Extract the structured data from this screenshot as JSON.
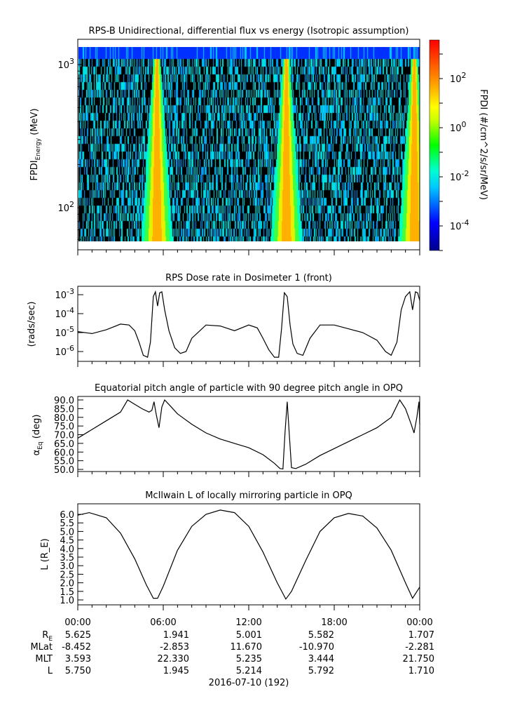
{
  "chart_data": [
    {
      "type": "heatmap",
      "title": "RPS-B  Unidirectional, differential flux vs energy (Isotropic assumption)",
      "ylabel": "FPDI_Energy (MeV)",
      "yscale": "log",
      "ylim": [
        58,
        1325
      ],
      "yticks": [
        {
          "v": 100,
          "label": "10",
          "exp": "2"
        },
        {
          "v": 1000,
          "label": "10",
          "exp": "3"
        }
      ],
      "colorbar": {
        "label": "FPDI (#/cm^2/s/sr/MeV)",
        "range_log10": [
          -5,
          3.57
        ],
        "ticks": [
          {
            "v": 2,
            "label": "10",
            "exp": "2"
          },
          {
            "v": 0,
            "label": "10",
            "exp": "0"
          },
          {
            "v": -2,
            "label": "10",
            "exp": "-2"
          },
          {
            "v": -4,
            "label": "10",
            "exp": "-4"
          }
        ]
      },
      "bright_band_center_hours": [
        5.5,
        14.6,
        23.6
      ],
      "xlim_hours": [
        0,
        24
      ]
    },
    {
      "type": "line",
      "title": "RPS  Dose rate in Dosimeter 1 (front)",
      "ylabel": "(rads/sec)",
      "yscale": "log",
      "ylim_log10": [
        -6.55,
        -2.6
      ],
      "yticks": [
        {
          "v": -3,
          "label": "10",
          "exp": "-3"
        },
        {
          "v": -4,
          "label": "10",
          "exp": "-4"
        },
        {
          "v": -5,
          "label": "10",
          "exp": "-5"
        },
        {
          "v": -6,
          "label": "10",
          "exp": "-6"
        }
      ],
      "x_hours": [
        0,
        1,
        2,
        3,
        3.6,
        4.0,
        4.3,
        4.6,
        4.9,
        5.1,
        5.3,
        5.45,
        5.6,
        5.75,
        5.9,
        6.1,
        6.4,
        6.8,
        7.2,
        7.6,
        8,
        9,
        10,
        11,
        12,
        12.6,
        13,
        13.4,
        13.8,
        14.1,
        14.3,
        14.5,
        14.7,
        14.9,
        15.1,
        15.4,
        15.8,
        16.3,
        17,
        18,
        19,
        20,
        21,
        21.6,
        22,
        22.4,
        22.7,
        23,
        23.3,
        23.5,
        23.7,
        23.85,
        24
      ],
      "y_log10": [
        -4.95,
        -5.05,
        -4.85,
        -4.55,
        -4.6,
        -4.9,
        -5.5,
        -6.2,
        -6.3,
        -5.5,
        -3.1,
        -2.85,
        -3.6,
        -2.9,
        -2.85,
        -3.8,
        -4.9,
        -5.8,
        -6.1,
        -6.0,
        -5.3,
        -4.6,
        -4.65,
        -4.9,
        -4.6,
        -4.75,
        -5.3,
        -5.9,
        -6.3,
        -6.3,
        -4.8,
        -2.9,
        -3.1,
        -4.6,
        -5.6,
        -6.1,
        -6.2,
        -5.3,
        -4.6,
        -4.6,
        -4.8,
        -5.0,
        -5.4,
        -6.0,
        -6.2,
        -5.5,
        -3.8,
        -3.1,
        -2.85,
        -3.8,
        -2.85,
        -2.9,
        -3.3
      ]
    },
    {
      "type": "line",
      "title": "Equatorial pitch angle of particle with 90 degree pitch angle in OPQ",
      "ylabel": "α_Eq (deg)",
      "ylim": [
        48.5,
        92
      ],
      "yticks": [
        90,
        85,
        80,
        75,
        70,
        65,
        60,
        55,
        50
      ],
      "x_hours": [
        0,
        1,
        2,
        3,
        3.5,
        4,
        4.5,
        5,
        5.2,
        5.35,
        5.5,
        5.7,
        5.9,
        6.1,
        6.5,
        7,
        8,
        9,
        10,
        11,
        12,
        13,
        13.8,
        14.2,
        14.4,
        14.55,
        14.7,
        14.85,
        15.0,
        15.3,
        16,
        17,
        18,
        19,
        20,
        21,
        22,
        22.6,
        23,
        23.4,
        23.6,
        23.8,
        23.95,
        24
      ],
      "y": [
        68,
        73,
        78,
        83,
        90,
        87.5,
        85,
        83,
        84,
        89,
        82,
        74,
        86,
        90,
        86.5,
        82,
        76,
        71,
        67.5,
        65,
        62.5,
        58.5,
        53.5,
        50.5,
        50.3,
        72,
        89,
        70,
        51,
        50.5,
        53,
        58,
        62,
        66,
        70,
        74,
        80,
        90,
        85,
        76,
        71,
        80,
        89,
        76
      ]
    },
    {
      "type": "line",
      "title": "McIlwain L of locally mirroring particle in OPQ",
      "ylabel": "L (R_E)",
      "ylim": [
        0.6,
        6.5
      ],
      "yticks": [
        6,
        5.5,
        5,
        4.5,
        4,
        3.5,
        3,
        2.5,
        2,
        1.5,
        1
      ],
      "x_hours": [
        0,
        0.8,
        2,
        3,
        4,
        4.8,
        5.3,
        5.6,
        6,
        7,
        8,
        9,
        10,
        11,
        12,
        13,
        14,
        14.6,
        15,
        16,
        17,
        18,
        19,
        20,
        21,
        22,
        23,
        23.5,
        24
      ],
      "y": [
        5.95,
        6.1,
        5.8,
        4.9,
        3.4,
        1.9,
        1.1,
        1.1,
        1.8,
        3.9,
        5.3,
        6.0,
        6.25,
        6.1,
        5.3,
        3.8,
        2.0,
        1.05,
        1.5,
        3.3,
        5.0,
        5.8,
        6.05,
        5.9,
        5.2,
        3.9,
        2.0,
        1.1,
        1.75
      ]
    }
  ],
  "xaxis": {
    "ticks_hours": [
      0,
      6,
      12,
      18,
      24
    ],
    "labels": [
      "00:00",
      "06:00",
      "12:00",
      "18:00",
      "00:00"
    ]
  },
  "ephemeris": {
    "rows": [
      {
        "label": "R",
        "sub": "E",
        "values": [
          "5.625",
          "1.941",
          "5.001",
          "5.582",
          "1.707"
        ]
      },
      {
        "label": "MLat",
        "sub": "",
        "values": [
          "-8.452",
          "-2.853",
          "11.670",
          "-10.970",
          "-2.281"
        ]
      },
      {
        "label": "MLT",
        "sub": "",
        "values": [
          "3.593",
          "22.330",
          "5.235",
          "3.444",
          "21.750"
        ]
      },
      {
        "label": "L",
        "sub": "",
        "values": [
          "5.750",
          "1.945",
          "5.214",
          "5.792",
          "1.710"
        ]
      }
    ],
    "date": "2016-07-10 (192)"
  }
}
